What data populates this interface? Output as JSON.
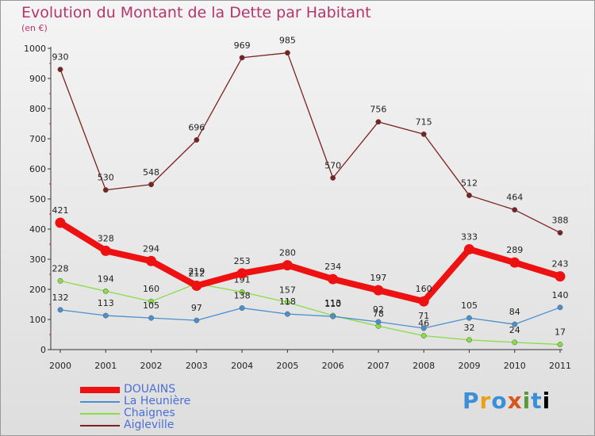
{
  "chart_data": {
    "type": "line",
    "title": "Evolution du Montant de la Dette par Habitant",
    "subtitle": "(en €)",
    "x": [
      "2000",
      "2001",
      "2002",
      "2003",
      "2004",
      "2005",
      "2006",
      "2007",
      "2008",
      "2009",
      "2010",
      "2011"
    ],
    "ylim": [
      0,
      1000
    ],
    "yticks": [
      0,
      100,
      200,
      300,
      400,
      500,
      600,
      700,
      800,
      900,
      1000
    ],
    "grid": false,
    "legend_position": "bottom-left",
    "series": [
      {
        "name": "DOUAINS",
        "color": "#ee1111",
        "values": [
          421,
          328,
          294,
          212,
          253,
          280,
          234,
          197,
          160,
          333,
          289,
          243
        ]
      },
      {
        "name": "La Heunière",
        "color": "#4a8fd0",
        "values": [
          132,
          113,
          105,
          97,
          138,
          118,
          110,
          92,
          71,
          105,
          84,
          140
        ]
      },
      {
        "name": "Chaignes",
        "color": "#88dd44",
        "values": [
          228,
          194,
          160,
          219,
          191,
          157,
          113,
          78,
          46,
          32,
          24,
          17
        ]
      },
      {
        "name": "Aigleville",
        "color": "#7a2222",
        "values": [
          930,
          530,
          548,
          696,
          969,
          985,
          570,
          756,
          715,
          512,
          464,
          388
        ]
      }
    ]
  },
  "logo": {
    "letters": [
      "P",
      "r",
      "o",
      "x",
      "i",
      "t",
      "i"
    ]
  }
}
